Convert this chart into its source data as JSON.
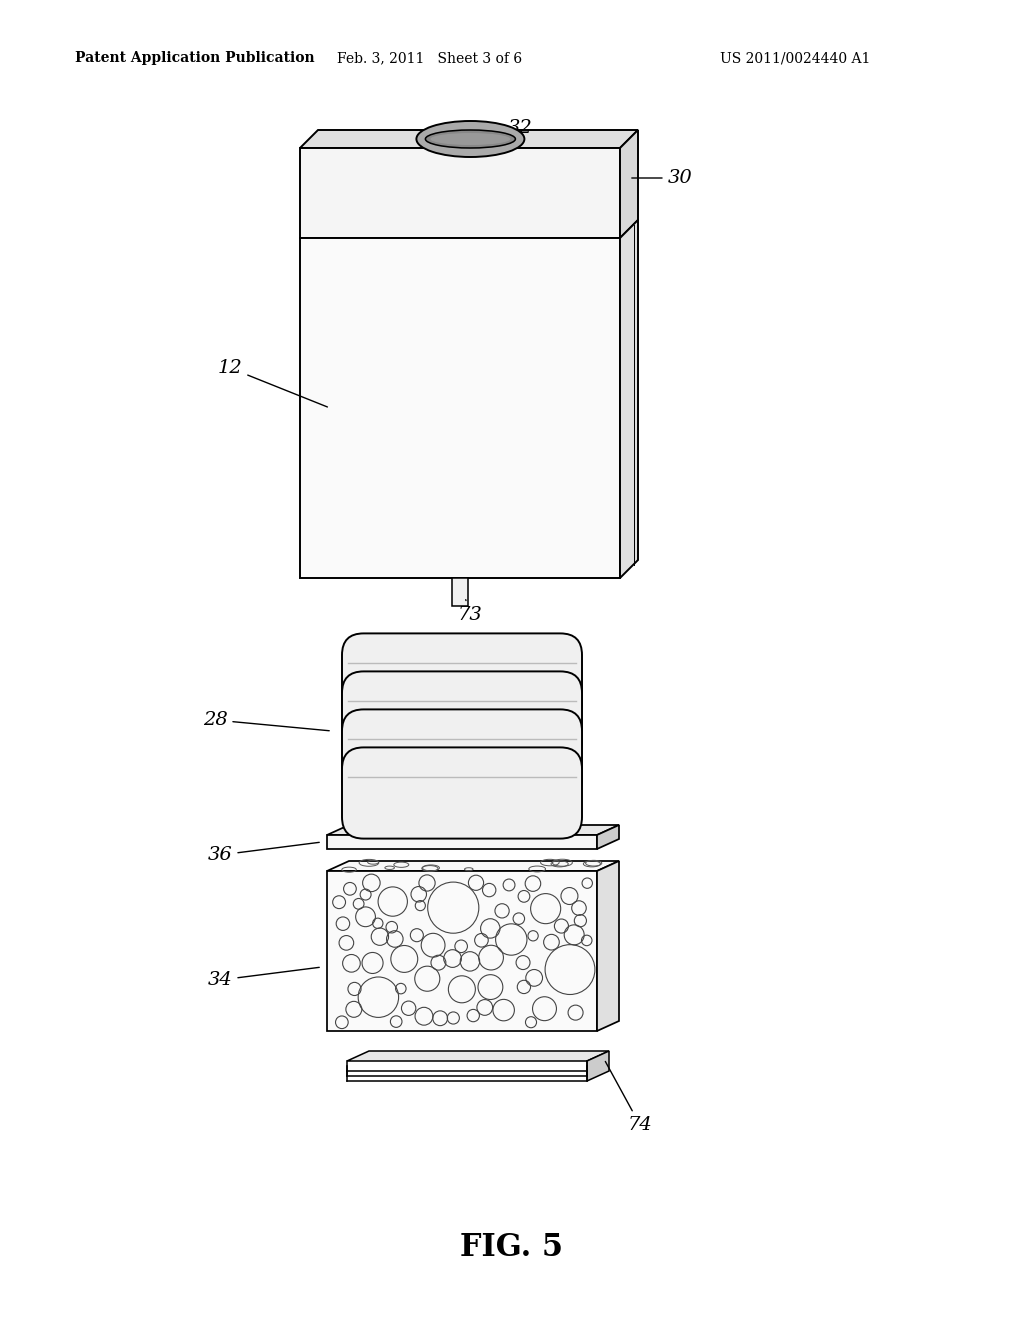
{
  "bg_color": "#ffffff",
  "line_color": "#000000",
  "header_left": "Patent Application Publication",
  "header_mid": "Feb. 3, 2011   Sheet 3 of 6",
  "header_right": "US 2011/0024440 A1",
  "figure_label": "FIG. 5"
}
